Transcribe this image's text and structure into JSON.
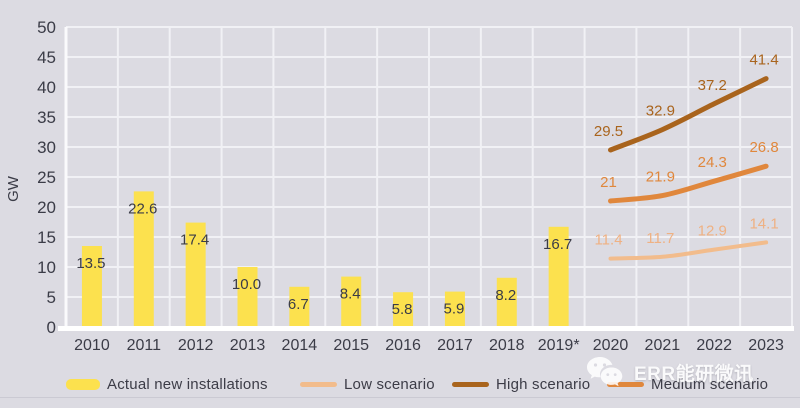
{
  "chart_data": {
    "type": "bar",
    "title": "",
    "ylabel": "GW",
    "xlabel": "",
    "ylim": [
      0,
      50
    ],
    "yticks": [
      0,
      5,
      10,
      15,
      20,
      25,
      30,
      35,
      40,
      45,
      50
    ],
    "grid": true,
    "categories": [
      "2010",
      "2011",
      "2012",
      "2013",
      "2014",
      "2015",
      "2016",
      "2017",
      "2018",
      "2019*",
      "2020",
      "2021",
      "2022",
      "2023"
    ],
    "bar_series": {
      "name": "Actual new installations",
      "color": "#FCE14E",
      "values": [
        13.5,
        22.6,
        17.4,
        10.0,
        6.7,
        8.4,
        5.8,
        5.9,
        8.2,
        16.7
      ],
      "value_labels": [
        "13.5",
        "22.6",
        "17.4",
        "10.0",
        "6.7",
        "8.4",
        "5.8",
        "5.9",
        "8.2",
        "16.7"
      ],
      "label_color": "#3B3C47"
    },
    "line_series": [
      {
        "name": "Low scenario",
        "color": "#F2BC8C",
        "label_color": "#EFB183",
        "start_category": "2020",
        "values": [
          11.4,
          11.7,
          12.9,
          14.1
        ],
        "value_labels": [
          "11.4",
          "11.7",
          "12.9",
          "14.1"
        ]
      },
      {
        "name": "High scenario",
        "color": "#A9641D",
        "label_color": "#A9641D",
        "start_category": "2020",
        "values": [
          29.5,
          32.9,
          37.2,
          41.4
        ],
        "value_labels": [
          "29.5",
          "32.9",
          "37.2",
          "41.4"
        ]
      },
      {
        "name": "Medium scenario",
        "color": "#E0873C",
        "label_color": "#E0873C",
        "start_category": "2020",
        "values": [
          21,
          21.9,
          24.3,
          26.8
        ],
        "value_labels": [
          "21",
          "21.9",
          "24.3",
          "26.8"
        ]
      }
    ],
    "legend_position": "bottom",
    "legend": [
      {
        "label": "Actual new installations",
        "swatch": "bar",
        "color": "#FCE14E"
      },
      {
        "label": "Low scenario",
        "swatch": "line",
        "color": "#F2BC8C"
      },
      {
        "label": "High scenario",
        "swatch": "line",
        "color": "#A9641D"
      },
      {
        "label": "Medium scenario",
        "swatch": "line",
        "color": "#E0873C"
      }
    ],
    "axis_text_color": "#3B3C47",
    "background_color": "#DCDBE2",
    "gridline_color": "#F1F1F5"
  },
  "watermark": {
    "text": "ERR能研微讯",
    "icon": "wechat-icon"
  }
}
